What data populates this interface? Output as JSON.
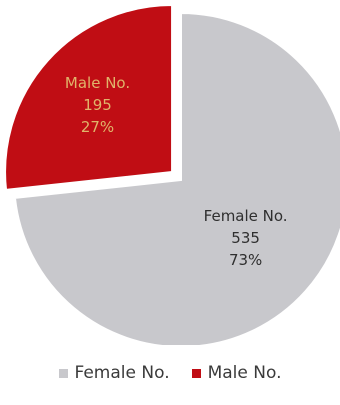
{
  "chart_data": {
    "type": "pie",
    "title": "",
    "categories": [
      "Female No.",
      "Male No."
    ],
    "values": [
      535,
      195
    ],
    "percentages": [
      "73%",
      "27%"
    ],
    "colors": [
      "#c8c8cc",
      "#c00d14"
    ],
    "label_colors": [
      "#2f2f2f",
      "#e0b46a"
    ],
    "legend_position": "bottom",
    "exploded": "Male No.",
    "slice_labels": [
      {
        "name": "Female No.",
        "value": "535",
        "percent": "73%"
      },
      {
        "name": "Male No.",
        "value": "195",
        "percent": "27%"
      }
    ]
  },
  "legend": {
    "items": [
      {
        "label": "Female No.",
        "color": "#c8c8cc"
      },
      {
        "label": "Male No.",
        "color": "#c00d14"
      }
    ]
  }
}
